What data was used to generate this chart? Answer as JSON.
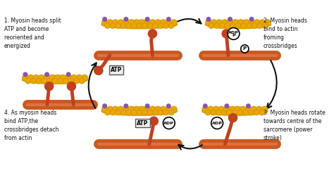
{
  "bg_color": "#ffffff",
  "actin_color": "#E8A800",
  "actin_outline": "#CC8800",
  "actin_dark": "#996600",
  "myosin_rod_color": "#C85A20",
  "myosin_head_color": "#C04020",
  "purple_dot_color": "#8855AA",
  "label1": "1. Myosin heads split\nATP and become\nreoriented and\nenergized",
  "label2": "2. Myosin heads\nbind to actin\nfroming\ncrossbridges",
  "label3": "3. Myosin heads rotate\ntowards centre of the\nsarcomere (power\nstroke)",
  "label4": "4. As myosin heads\nbind ATP,the\ncrossbridges detach\nfrom actin",
  "text_color": "#111111",
  "arrow_color": "#111111"
}
